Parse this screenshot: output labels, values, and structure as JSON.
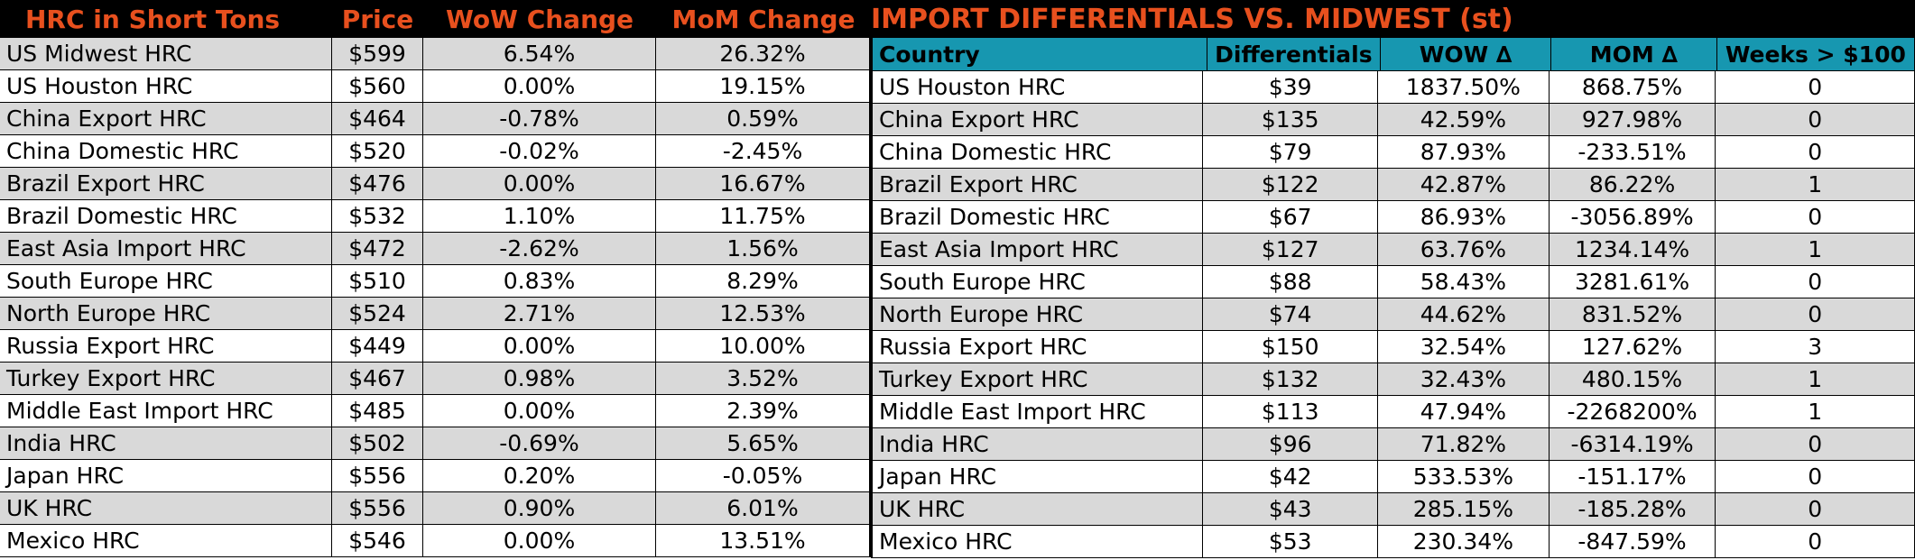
{
  "left": {
    "headers": [
      "HRC in Short Tons",
      "Price",
      "WoW Change",
      "MoM Change"
    ],
    "rows": [
      [
        "US Midwest HRC",
        "$599",
        "6.54%",
        "26.32%"
      ],
      [
        "US Houston HRC",
        "$560",
        "0.00%",
        "19.15%"
      ],
      [
        "China Export HRC",
        "$464",
        "-0.78%",
        "0.59%"
      ],
      [
        "China Domestic HRC",
        "$520",
        "-0.02%",
        "-2.45%"
      ],
      [
        "Brazil Export HRC",
        "$476",
        "0.00%",
        "16.67%"
      ],
      [
        "Brazil Domestic HRC",
        "$532",
        "1.10%",
        "11.75%"
      ],
      [
        "East Asia Import HRC",
        "$472",
        "-2.62%",
        "1.56%"
      ],
      [
        "South Europe HRC",
        "$510",
        "0.83%",
        "8.29%"
      ],
      [
        "North Europe HRC",
        "$524",
        "2.71%",
        "12.53%"
      ],
      [
        "Russia Export HRC",
        "$449",
        "0.00%",
        "10.00%"
      ],
      [
        "Turkey Export HRC",
        "$467",
        "0.98%",
        "3.52%"
      ],
      [
        "Middle East Import HRC",
        "$485",
        "0.00%",
        "2.39%"
      ],
      [
        "India HRC",
        "$502",
        "-0.69%",
        "5.65%"
      ],
      [
        "Japan HRC",
        "$556",
        "0.20%",
        "-0.05%"
      ],
      [
        "UK HRC",
        "$556",
        "0.90%",
        "6.01%"
      ],
      [
        "Mexico HRC",
        "$546",
        "0.00%",
        "13.51%"
      ]
    ]
  },
  "right": {
    "title": "IMPORT DIFFERENTIALS VS. MIDWEST (st)",
    "headers": [
      "Country",
      "Differentials",
      "WOW ∆",
      "MOM ∆",
      "Weeks > $100"
    ],
    "rows": [
      [
        "US Houston HRC",
        "$39",
        "1837.50%",
        "868.75%",
        "0"
      ],
      [
        "China Export HRC",
        "$135",
        "42.59%",
        "927.98%",
        "0"
      ],
      [
        "China Domestic HRC",
        "$79",
        "87.93%",
        "-233.51%",
        "0"
      ],
      [
        "Brazil Export HRC",
        "$122",
        "42.87%",
        "86.22%",
        "1"
      ],
      [
        "Brazil Domestic HRC",
        "$67",
        "86.93%",
        "-3056.89%",
        "0"
      ],
      [
        "East Asia Import HRC",
        "$127",
        "63.76%",
        "1234.14%",
        "1"
      ],
      [
        "South Europe HRC",
        "$88",
        "58.43%",
        "3281.61%",
        "0"
      ],
      [
        "North Europe HRC",
        "$74",
        "44.62%",
        "831.52%",
        "0"
      ],
      [
        "Russia Export HRC",
        "$150",
        "32.54%",
        "127.62%",
        "3"
      ],
      [
        "Turkey Export HRC",
        "$132",
        "32.43%",
        "480.15%",
        "1"
      ],
      [
        "Middle East Import HRC",
        "$113",
        "47.94%",
        "-2268200%",
        "1"
      ],
      [
        "India HRC",
        "$96",
        "71.82%",
        "-6314.19%",
        "0"
      ],
      [
        "Japan HRC",
        "$42",
        "533.53%",
        "-151.17%",
        "0"
      ],
      [
        "UK HRC",
        "$43",
        "285.15%",
        "-185.28%",
        "0"
      ],
      [
        "Mexico HRC",
        "$53",
        "230.34%",
        "-847.59%",
        "0"
      ]
    ]
  },
  "colors": {
    "header_bg": "#000000",
    "header_text": "#e8501e",
    "column_header_bg": "#1797b0",
    "shaded_row": "#d9d9d9"
  }
}
